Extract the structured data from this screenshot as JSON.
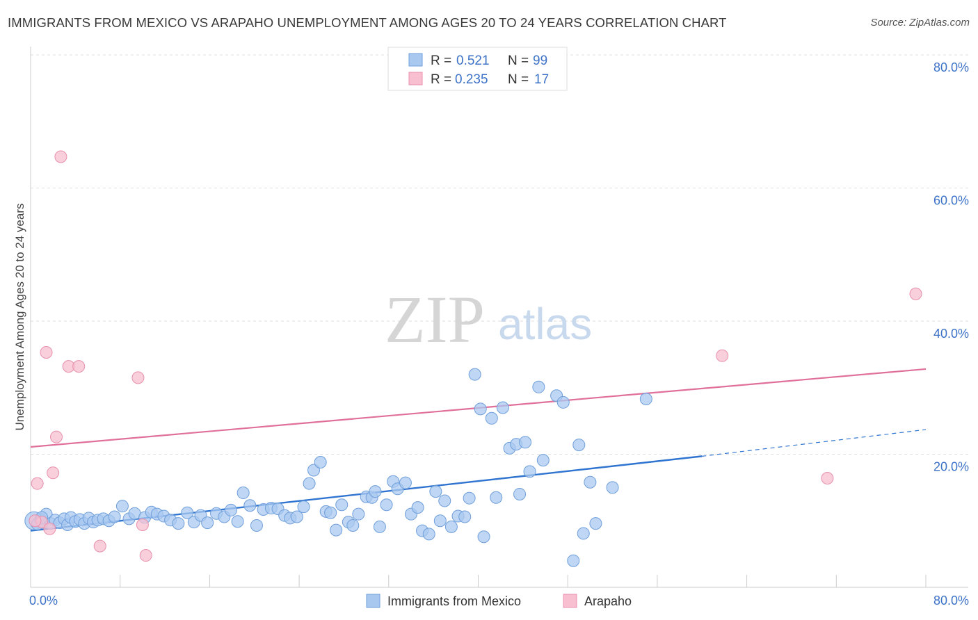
{
  "title": "IMMIGRANTS FROM MEXICO VS ARAPAHO UNEMPLOYMENT AMONG AGES 20 TO 24 YEARS CORRELATION CHART",
  "source": "Source: ZipAtlas.com",
  "watermark": {
    "zip": "ZIP",
    "atlas": "atlas"
  },
  "colors": {
    "blue_fill": "#a9c8f0",
    "blue_stroke": "#6f9fdb",
    "blue_line": "#2e74d0",
    "pink_fill": "#f7bfd0",
    "pink_stroke": "#e890ac",
    "pink_line": "#e0709a",
    "tick_label": "#3d72c8",
    "grid": "#dddddd"
  },
  "legend_top": {
    "rows": [
      {
        "r_label": "R =",
        "r_value": "0.521",
        "n_label": "N =",
        "n_value": "99",
        "color": "#a9c8f0"
      },
      {
        "r_label": "R =",
        "r_value": "0.235",
        "n_label": "N =",
        "n_value": "17",
        "color": "#f7bfd0"
      }
    ]
  },
  "legend_bottom": [
    {
      "label": "Immigrants from Mexico",
      "color": "#a9c8f0"
    },
    {
      "label": "Arapaho",
      "color": "#f7bfd0"
    }
  ],
  "chart_data": {
    "type": "scatter",
    "title": "IMMIGRANTS FROM MEXICO VS ARAPAHO UNEMPLOYMENT AMONG AGES 20 TO 24 YEARS CORRELATION CHART",
    "xlabel": "",
    "ylabel": "Unemployment Among Ages 20 to 24 years",
    "xlim": [
      0,
      80
    ],
    "ylim": [
      0,
      80
    ],
    "x_tick_labels": [
      "0.0%",
      "80.0%"
    ],
    "y_tick_values": [
      20,
      40,
      60,
      80
    ],
    "y_tick_labels": [
      "20.0%",
      "40.0%",
      "60.0%",
      "80.0%"
    ],
    "grid": true,
    "legend_placement": "top-center",
    "series": [
      {
        "name": "Immigrants from Mexico",
        "color": "#a9c8f0",
        "points": [
          [
            0.3,
            10.0
          ],
          [
            0.6,
            9.5
          ],
          [
            0.9,
            10.2
          ],
          [
            1.1,
            9.8
          ],
          [
            1.4,
            11.0
          ],
          [
            1.8,
            9.6
          ],
          [
            2.2,
            10.1
          ],
          [
            2.6,
            9.7
          ],
          [
            3.0,
            10.3
          ],
          [
            3.3,
            9.4
          ],
          [
            3.6,
            10.5
          ],
          [
            4.0,
            9.9
          ],
          [
            4.4,
            10.2
          ],
          [
            4.8,
            9.6
          ],
          [
            5.2,
            10.4
          ],
          [
            5.6,
            9.8
          ],
          [
            6.0,
            10.1
          ],
          [
            6.5,
            10.3
          ],
          [
            7.0,
            10.0
          ],
          [
            7.5,
            10.6
          ],
          [
            8.2,
            12.2
          ],
          [
            8.8,
            10.3
          ],
          [
            9.3,
            11.1
          ],
          [
            10.2,
            10.5
          ],
          [
            10.8,
            11.3
          ],
          [
            11.3,
            11.0
          ],
          [
            11.9,
            10.7
          ],
          [
            12.5,
            10.1
          ],
          [
            13.2,
            9.6
          ],
          [
            14.0,
            11.2
          ],
          [
            14.6,
            9.8
          ],
          [
            15.2,
            10.8
          ],
          [
            15.8,
            9.7
          ],
          [
            16.6,
            11.1
          ],
          [
            17.3,
            10.6
          ],
          [
            17.9,
            11.6
          ],
          [
            18.5,
            9.9
          ],
          [
            19.0,
            14.2
          ],
          [
            19.6,
            12.3
          ],
          [
            20.2,
            9.3
          ],
          [
            20.8,
            11.7
          ],
          [
            21.5,
            11.9
          ],
          [
            22.1,
            11.8
          ],
          [
            22.7,
            10.8
          ],
          [
            23.2,
            10.4
          ],
          [
            23.8,
            10.6
          ],
          [
            24.4,
            12.1
          ],
          [
            24.9,
            15.6
          ],
          [
            25.3,
            17.6
          ],
          [
            25.9,
            18.8
          ],
          [
            26.4,
            11.4
          ],
          [
            26.8,
            11.2
          ],
          [
            27.3,
            8.6
          ],
          [
            27.8,
            12.4
          ],
          [
            28.4,
            9.8
          ],
          [
            28.8,
            9.3
          ],
          [
            29.3,
            11.0
          ],
          [
            30.0,
            13.6
          ],
          [
            30.5,
            13.5
          ],
          [
            30.8,
            14.4
          ],
          [
            31.2,
            9.1
          ],
          [
            31.8,
            12.4
          ],
          [
            32.4,
            15.9
          ],
          [
            32.8,
            14.8
          ],
          [
            33.5,
            15.7
          ],
          [
            34.0,
            11.0
          ],
          [
            34.6,
            12.0
          ],
          [
            35.0,
            8.5
          ],
          [
            35.6,
            8.0
          ],
          [
            36.2,
            14.4
          ],
          [
            36.6,
            10.0
          ],
          [
            37.0,
            13.0
          ],
          [
            37.6,
            9.1
          ],
          [
            38.2,
            10.7
          ],
          [
            38.8,
            10.6
          ],
          [
            39.2,
            13.4
          ],
          [
            39.7,
            32.0
          ],
          [
            40.2,
            26.8
          ],
          [
            40.5,
            7.6
          ],
          [
            41.2,
            25.4
          ],
          [
            41.6,
            13.5
          ],
          [
            42.2,
            27.0
          ],
          [
            42.8,
            20.9
          ],
          [
            43.4,
            21.5
          ],
          [
            43.7,
            14.0
          ],
          [
            44.2,
            21.8
          ],
          [
            44.6,
            17.4
          ],
          [
            45.4,
            30.1
          ],
          [
            45.8,
            19.1
          ],
          [
            47.0,
            28.8
          ],
          [
            47.6,
            27.8
          ],
          [
            48.5,
            4.0
          ],
          [
            49.0,
            21.4
          ],
          [
            49.4,
            8.1
          ],
          [
            50.0,
            15.8
          ],
          [
            50.5,
            9.6
          ],
          [
            52.0,
            15.0
          ],
          [
            55.0,
            28.3
          ],
          [
            1.0,
            10.5
          ]
        ]
      },
      {
        "name": "Arapaho",
        "color": "#f7bfd0",
        "points": [
          [
            0.6,
            15.6
          ],
          [
            1.0,
            9.8
          ],
          [
            1.4,
            35.3
          ],
          [
            1.7,
            8.8
          ],
          [
            2.0,
            17.2
          ],
          [
            2.3,
            22.6
          ],
          [
            2.7,
            64.7
          ],
          [
            3.4,
            33.2
          ],
          [
            4.3,
            33.2
          ],
          [
            6.2,
            6.2
          ],
          [
            9.6,
            31.5
          ],
          [
            10.0,
            9.4
          ],
          [
            10.3,
            4.8
          ],
          [
            61.8,
            34.8
          ],
          [
            71.2,
            16.4
          ],
          [
            79.1,
            44.1
          ],
          [
            0.4,
            10.0
          ]
        ]
      }
    ],
    "trend_lines": [
      {
        "series": "Immigrants from Mexico",
        "x": [
          0,
          60
        ],
        "y": [
          8.5,
          19.7
        ],
        "dashed_extension": {
          "x": [
            60,
            80
          ],
          "y": [
            19.7,
            23.7
          ]
        }
      },
      {
        "series": "Arapaho",
        "x": [
          0,
          80
        ],
        "y": [
          21.1,
          32.8
        ]
      }
    ]
  }
}
